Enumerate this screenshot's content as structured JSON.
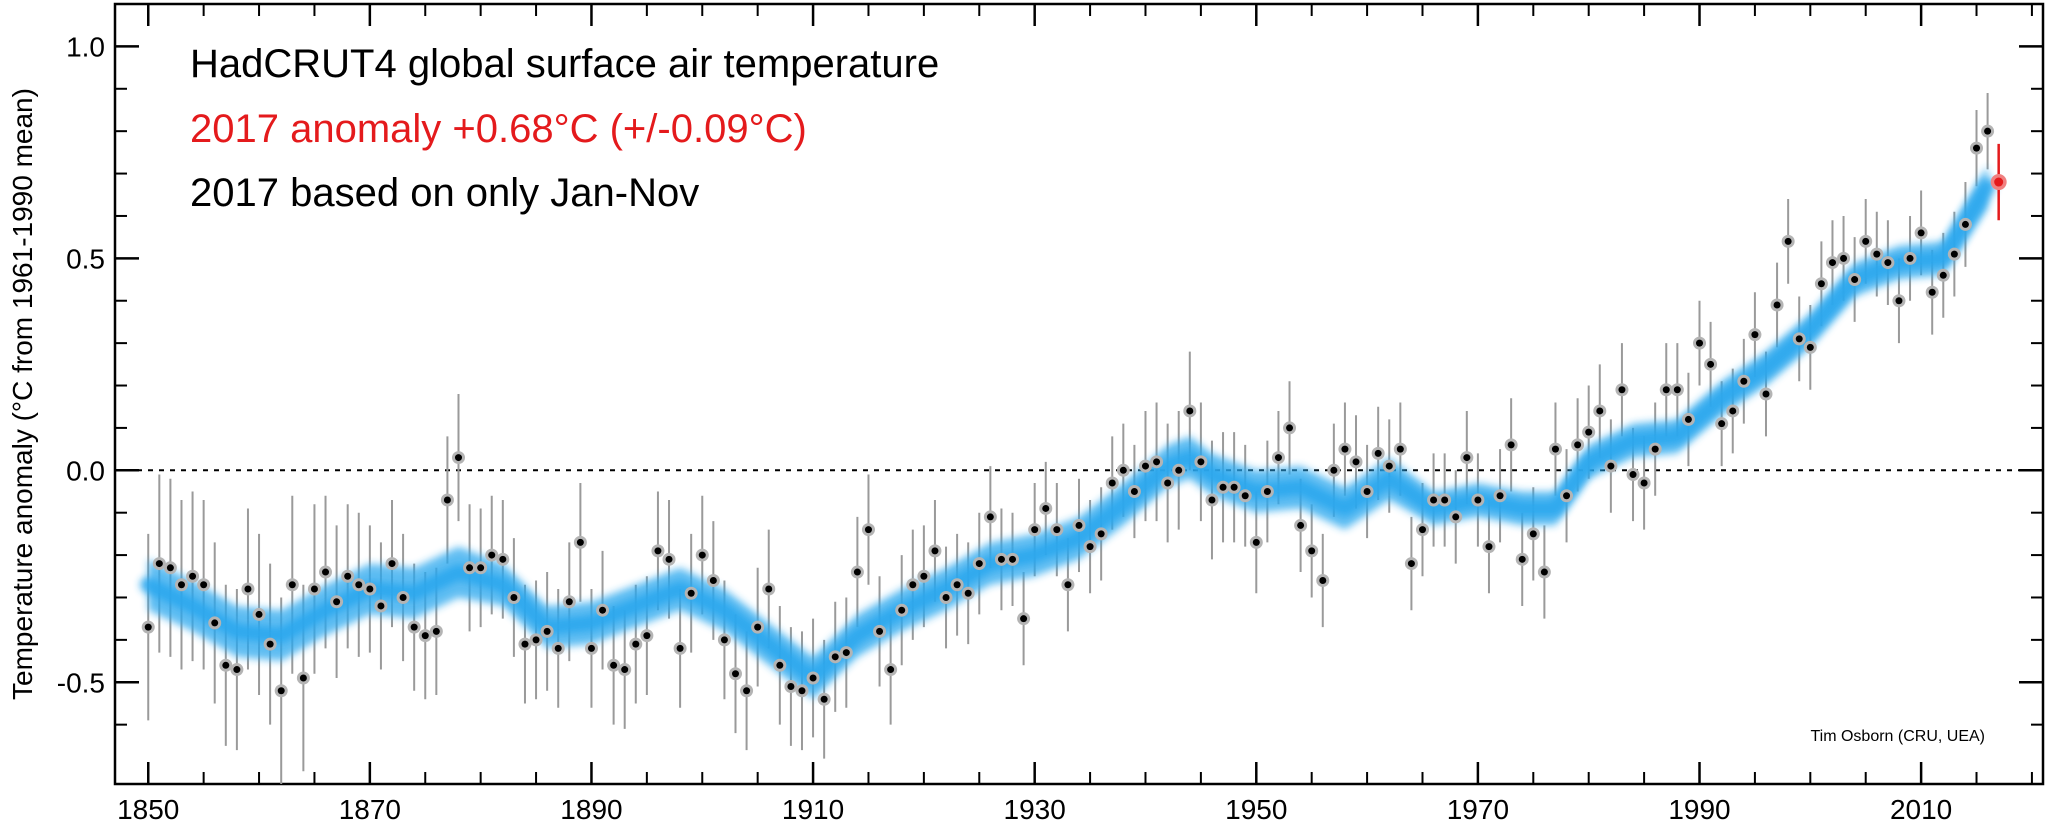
{
  "chart_data": {
    "type": "scatter",
    "ylabel": "Temperature anomaly (°C from 1961-1990 mean)",
    "xlim": [
      1847,
      2021
    ],
    "ylim": [
      -0.74,
      1.1
    ],
    "xticks": [
      1850,
      1870,
      1890,
      1910,
      1930,
      1950,
      1970,
      1990,
      2010
    ],
    "yticks": [
      1.0,
      0.5,
      0.0,
      -0.5
    ],
    "ytick_labels": [
      "1.0",
      "0.5",
      "0.0",
      "-0.5"
    ],
    "grid": false,
    "reference_line": 0.0,
    "annotations": {
      "line1": "HadCRUT4 global surface air temperature",
      "line2": "2017 anomaly +0.68°C (+/-0.09°C)",
      "line3": "2017 based on only Jan-Nov",
      "credit": "Tim Osborn (CRU, UEA)"
    },
    "colors": {
      "highlight": "#e41a1c",
      "smooth": "#2aa7ee",
      "point": "#000000",
      "point_halo": "#b4b4b4",
      "error_bar": "#9a9a9a"
    },
    "series": [
      {
        "x": [
          1850,
          1851,
          1852,
          1853,
          1854,
          1855,
          1856,
          1857,
          1858,
          1859,
          1860,
          1861,
          1862,
          1863,
          1864,
          1865,
          1866,
          1867,
          1868,
          1869,
          1870,
          1871,
          1872,
          1873,
          1874,
          1875,
          1876,
          1877,
          1878,
          1879,
          1880,
          1881,
          1882,
          1883,
          1884,
          1885,
          1886,
          1887,
          1888,
          1889,
          1890,
          1891,
          1892,
          1893,
          1894,
          1895,
          1896,
          1897,
          1898,
          1899,
          1900,
          1901,
          1902,
          1903,
          1904,
          1905,
          1906,
          1907,
          1908,
          1909,
          1910,
          1911,
          1912,
          1913,
          1914,
          1915,
          1916,
          1917,
          1918,
          1919,
          1920,
          1921,
          1922,
          1923,
          1924,
          1925,
          1926,
          1927,
          1928,
          1929,
          1930,
          1931,
          1932,
          1933,
          1934,
          1935,
          1936,
          1937,
          1938,
          1939,
          1940,
          1941,
          1942,
          1943,
          1944,
          1945,
          1946,
          1947,
          1948,
          1949,
          1950,
          1951,
          1952,
          1953,
          1954,
          1955,
          1956,
          1957,
          1958,
          1959,
          1960,
          1961,
          1962,
          1963,
          1964,
          1965,
          1966,
          1967,
          1968,
          1969,
          1970,
          1971,
          1972,
          1973,
          1974,
          1975,
          1976,
          1977,
          1978,
          1979,
          1980,
          1981,
          1982,
          1983,
          1984,
          1985,
          1986,
          1987,
          1988,
          1989,
          1990,
          1991,
          1992,
          1993,
          1994,
          1995,
          1996,
          1997,
          1998,
          1999,
          2000,
          2001,
          2002,
          2003,
          2004,
          2005,
          2006,
          2007,
          2008,
          2009,
          2010,
          2011,
          2012,
          2013,
          2014,
          2015,
          2016
        ],
        "values": [
          -0.37,
          -0.22,
          -0.23,
          -0.27,
          -0.25,
          -0.27,
          -0.36,
          -0.46,
          -0.47,
          -0.28,
          -0.34,
          -0.41,
          -0.52,
          -0.27,
          -0.49,
          -0.28,
          -0.24,
          -0.31,
          -0.25,
          -0.27,
          -0.28,
          -0.32,
          -0.22,
          -0.3,
          -0.37,
          -0.39,
          -0.38,
          -0.07,
          0.03,
          -0.23,
          -0.23,
          -0.2,
          -0.21,
          -0.3,
          -0.41,
          -0.4,
          -0.38,
          -0.42,
          -0.31,
          -0.17,
          -0.42,
          -0.33,
          -0.46,
          -0.47,
          -0.41,
          -0.39,
          -0.19,
          -0.21,
          -0.42,
          -0.29,
          -0.2,
          -0.26,
          -0.4,
          -0.48,
          -0.52,
          -0.37,
          -0.28,
          -0.46,
          -0.51,
          -0.52,
          -0.49,
          -0.54,
          -0.44,
          -0.43,
          -0.24,
          -0.14,
          -0.38,
          -0.47,
          -0.33,
          -0.27,
          -0.25,
          -0.19,
          -0.3,
          -0.27,
          -0.29,
          -0.22,
          -0.11,
          -0.21,
          -0.21,
          -0.35,
          -0.14,
          -0.09,
          -0.14,
          -0.27,
          -0.13,
          -0.18,
          -0.15,
          -0.03,
          0.0,
          -0.05,
          0.01,
          0.02,
          -0.03,
          0.0,
          0.14,
          0.02,
          -0.07,
          -0.04,
          -0.04,
          -0.06,
          -0.17,
          -0.05,
          0.03,
          0.1,
          -0.13,
          -0.19,
          -0.26,
          0.0,
          0.05,
          0.02,
          -0.05,
          0.04,
          0.01,
          0.05,
          -0.22,
          -0.14,
          -0.07,
          -0.07,
          -0.11,
          0.03,
          -0.07,
          -0.18,
          -0.06,
          0.06,
          -0.21,
          -0.15,
          -0.24,
          0.05,
          -0.06,
          0.06,
          0.09,
          0.14,
          0.01,
          0.19,
          -0.01,
          -0.03,
          0.05,
          0.19,
          0.19,
          0.12,
          0.3,
          0.25,
          0.11,
          0.14,
          0.21,
          0.32,
          0.18,
          0.39,
          0.54,
          0.31,
          0.29,
          0.44,
          0.49,
          0.5,
          0.45,
          0.54,
          0.51,
          0.49,
          0.4,
          0.5,
          0.56,
          0.42,
          0.46,
          0.51,
          0.58,
          0.76,
          0.8
        ],
        "errors": [
          0.22,
          0.21,
          0.21,
          0.2,
          0.2,
          0.2,
          0.19,
          0.19,
          0.19,
          0.19,
          0.19,
          0.19,
          0.22,
          0.21,
          0.22,
          0.2,
          0.18,
          0.18,
          0.17,
          0.17,
          0.15,
          0.15,
          0.15,
          0.15,
          0.15,
          0.15,
          0.15,
          0.15,
          0.15,
          0.15,
          0.14,
          0.14,
          0.14,
          0.14,
          0.14,
          0.14,
          0.14,
          0.14,
          0.14,
          0.14,
          0.14,
          0.14,
          0.14,
          0.14,
          0.14,
          0.14,
          0.14,
          0.14,
          0.14,
          0.14,
          0.14,
          0.14,
          0.14,
          0.14,
          0.14,
          0.14,
          0.14,
          0.14,
          0.14,
          0.14,
          0.14,
          0.14,
          0.13,
          0.13,
          0.13,
          0.13,
          0.13,
          0.13,
          0.13,
          0.13,
          0.12,
          0.12,
          0.12,
          0.12,
          0.12,
          0.12,
          0.12,
          0.12,
          0.11,
          0.11,
          0.11,
          0.11,
          0.11,
          0.11,
          0.11,
          0.11,
          0.11,
          0.11,
          0.11,
          0.11,
          0.13,
          0.14,
          0.14,
          0.14,
          0.14,
          0.14,
          0.14,
          0.13,
          0.13,
          0.12,
          0.12,
          0.12,
          0.11,
          0.11,
          0.11,
          0.11,
          0.11,
          0.11,
          0.11,
          0.11,
          0.11,
          0.11,
          0.11,
          0.11,
          0.11,
          0.11,
          0.11,
          0.11,
          0.11,
          0.11,
          0.11,
          0.11,
          0.11,
          0.11,
          0.11,
          0.11,
          0.11,
          0.11,
          0.11,
          0.11,
          0.11,
          0.11,
          0.11,
          0.11,
          0.11,
          0.11,
          0.11,
          0.11,
          0.11,
          0.11,
          0.1,
          0.1,
          0.1,
          0.1,
          0.1,
          0.1,
          0.1,
          0.1,
          0.1,
          0.1,
          0.1,
          0.1,
          0.1,
          0.1,
          0.1,
          0.1,
          0.1,
          0.1,
          0.1,
          0.1,
          0.1,
          0.1,
          0.1,
          0.1,
          0.1,
          0.09,
          0.09
        ]
      },
      {
        "x": [
          2017
        ],
        "values": [
          0.68
        ],
        "errors": [
          0.09
        ]
      }
    ],
    "smooth": {
      "x": [
        1850,
        1854,
        1858,
        1862,
        1866,
        1870,
        1874,
        1878,
        1882,
        1886,
        1890,
        1894,
        1898,
        1902,
        1906,
        1910,
        1914,
        1918,
        1922,
        1926,
        1930,
        1934,
        1938,
        1942,
        1944,
        1946,
        1950,
        1954,
        1958,
        1962,
        1966,
        1970,
        1974,
        1977,
        1980,
        1984,
        1988,
        1992,
        1996,
        2000,
        2004,
        2008,
        2012,
        2016
      ],
      "values": [
        -0.27,
        -0.32,
        -0.38,
        -0.39,
        -0.33,
        -0.28,
        -0.29,
        -0.24,
        -0.27,
        -0.37,
        -0.36,
        -0.32,
        -0.28,
        -0.33,
        -0.41,
        -0.49,
        -0.39,
        -0.33,
        -0.28,
        -0.22,
        -0.2,
        -0.16,
        -0.08,
        0.01,
        0.03,
        -0.01,
        -0.05,
        -0.04,
        -0.09,
        -0.02,
        -0.09,
        -0.07,
        -0.09,
        -0.09,
        0.02,
        0.07,
        0.08,
        0.17,
        0.24,
        0.33,
        0.45,
        0.49,
        0.5,
        0.67
      ],
      "band": [
        0.06,
        0.06,
        0.06,
        0.06,
        0.06,
        0.06,
        0.06,
        0.06,
        0.05,
        0.05,
        0.05,
        0.05,
        0.05,
        0.05,
        0.05,
        0.05,
        0.05,
        0.05,
        0.05,
        0.05,
        0.05,
        0.05,
        0.05,
        0.05,
        0.05,
        0.05,
        0.05,
        0.05,
        0.05,
        0.05,
        0.04,
        0.04,
        0.04,
        0.04,
        0.04,
        0.04,
        0.04,
        0.04,
        0.04,
        0.04,
        0.04,
        0.04,
        0.04,
        0.05
      ]
    }
  }
}
